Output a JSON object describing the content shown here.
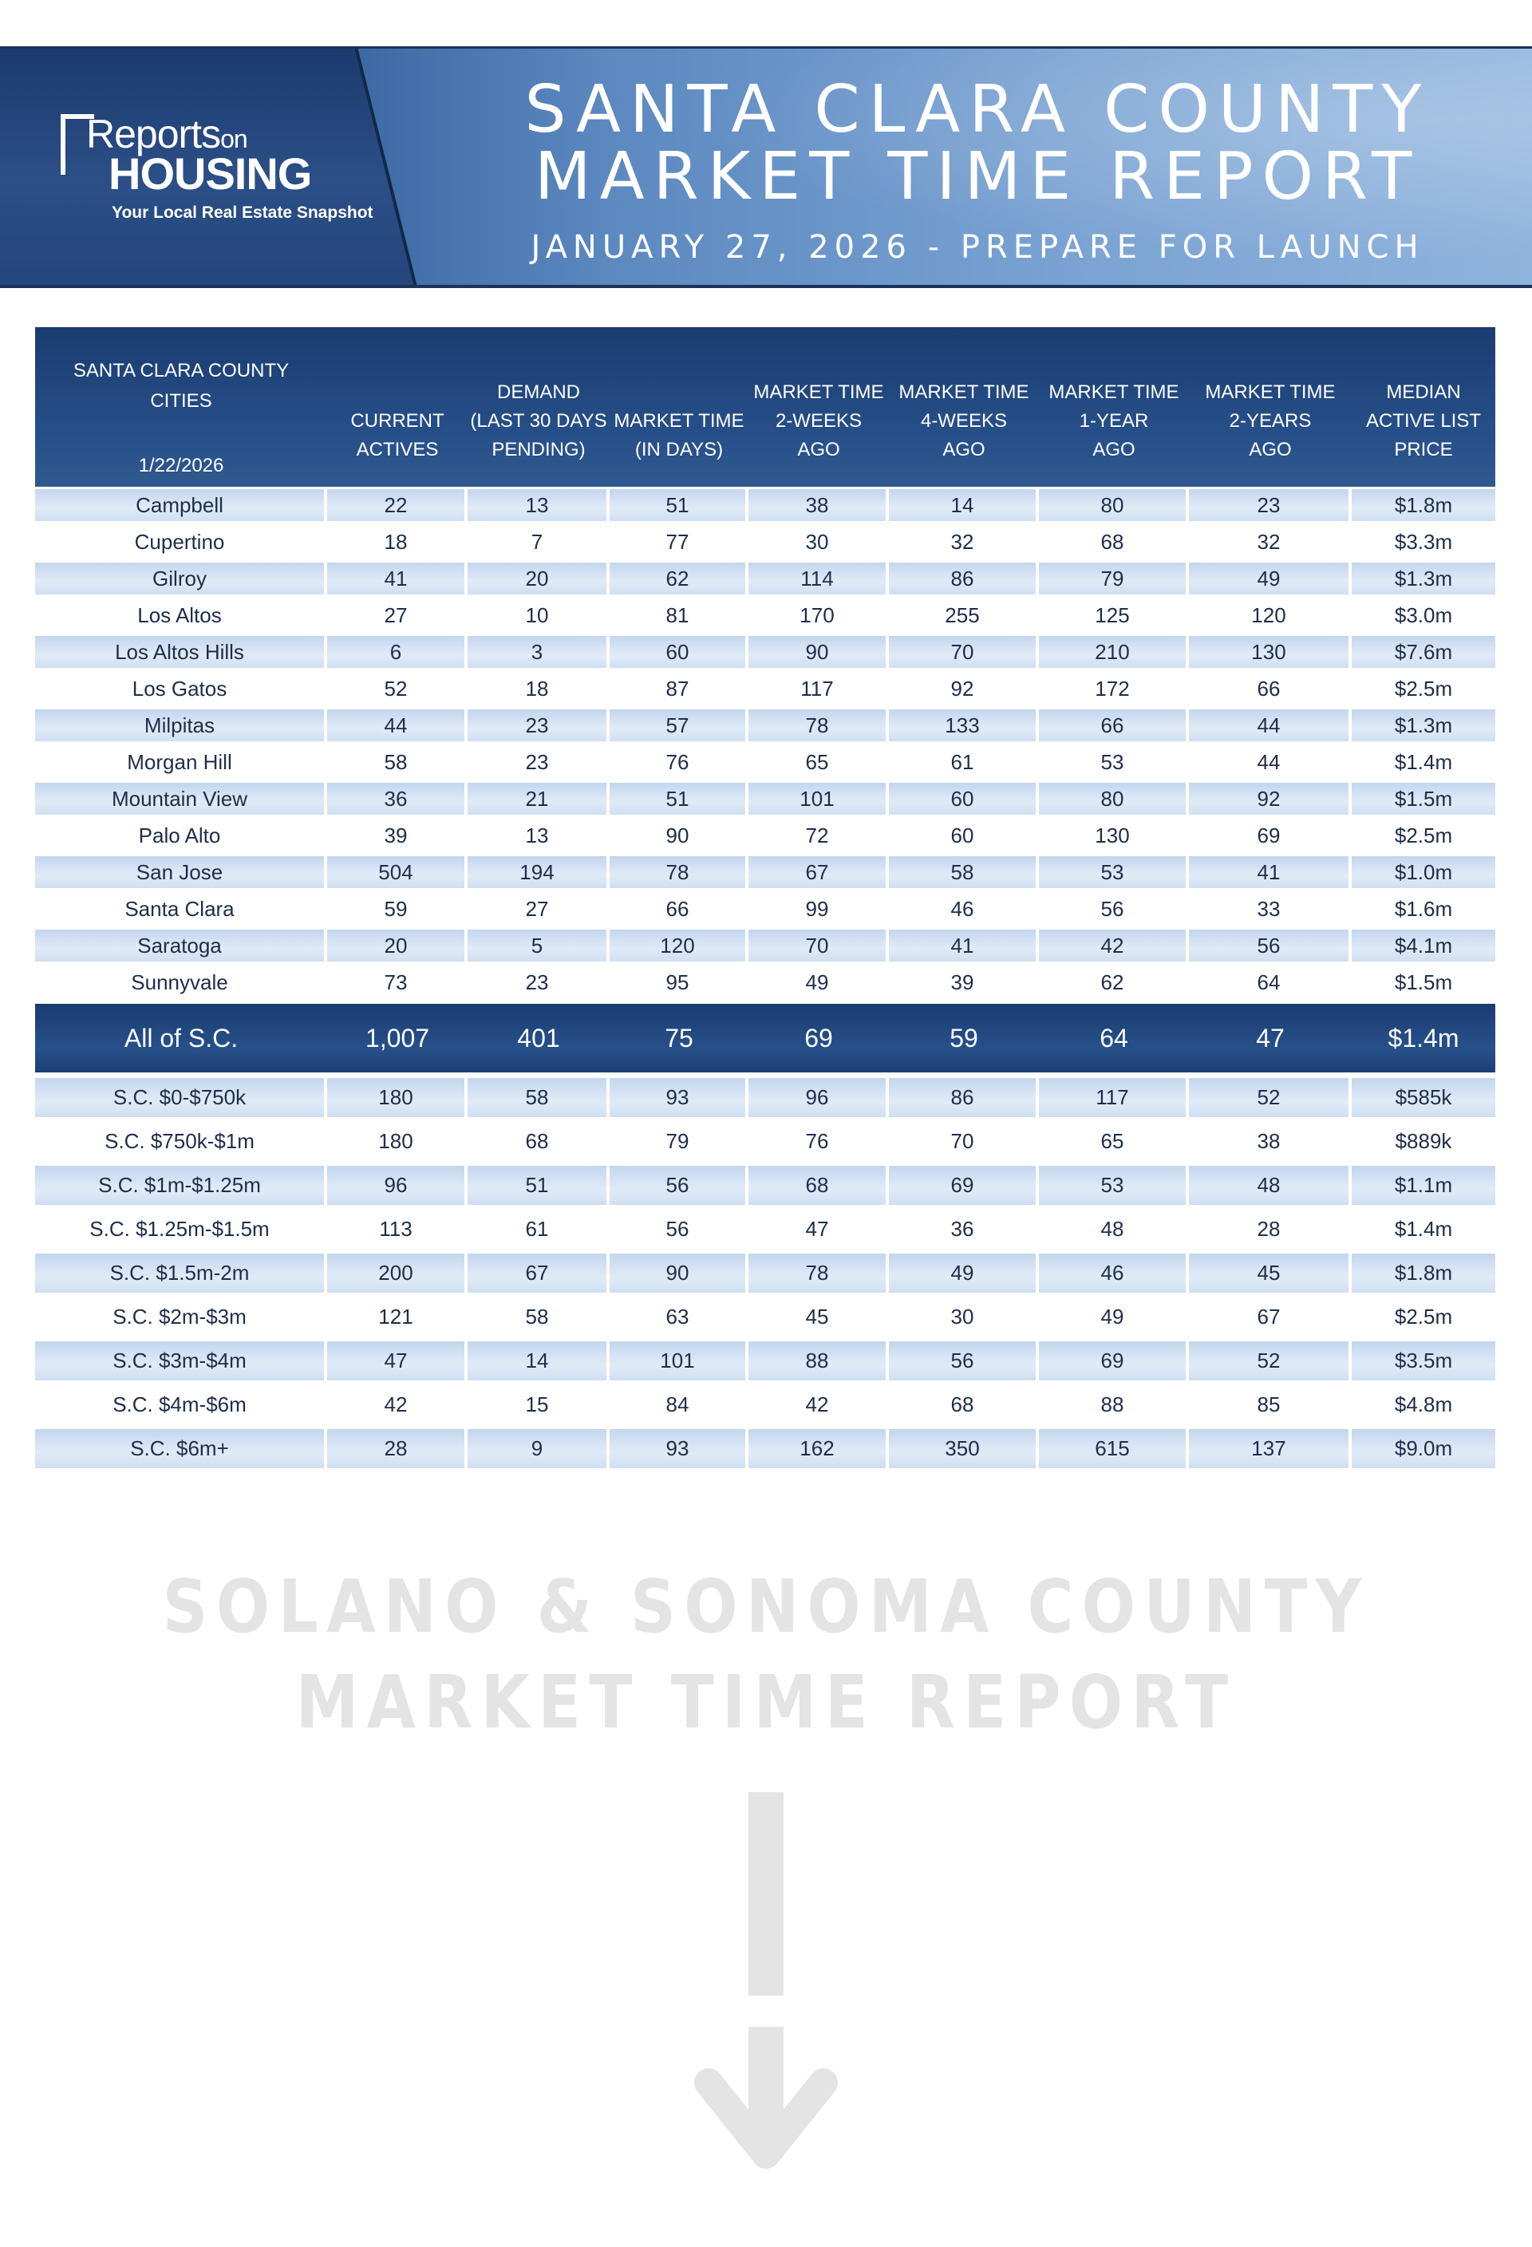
{
  "header": {
    "logo_word1": "Reports",
    "logo_on": "on",
    "logo_word2": "HOUSING",
    "logo_tagline": "Your Local Real Estate Snapshot",
    "title_line1": "SANTA CLARA COUNTY",
    "title_line2": "MARKET TIME REPORT",
    "subtitle": "JANUARY 27, 2026 - PREPARE FOR LAUNCH"
  },
  "table": {
    "headers": {
      "city_line1": "SANTA CLARA COUNTY",
      "city_line2": "CITIES",
      "date": "1/22/2026",
      "actives_1": "CURRENT",
      "actives_2": "ACTIVES",
      "demand_1": "DEMAND",
      "demand_2": "(LAST 30 DAYS",
      "demand_3": "PENDING)",
      "mt_1": "MARKET TIME",
      "mt_2": "(IN DAYS)",
      "mt2w_1": "MARKET TIME",
      "mt2w_2": "2-WEEKS",
      "mt2w_3": "AGO",
      "mt4w_1": "MARKET TIME",
      "mt4w_2": "4-WEEKS",
      "mt4w_3": "AGO",
      "mt1y_1": "MARKET TIME",
      "mt1y_2": "1-YEAR",
      "mt1y_3": "AGO",
      "mt2y_1": "MARKET TIME",
      "mt2y_2": "2-YEARS",
      "mt2y_3": "AGO",
      "price_1": "MEDIAN",
      "price_2": "ACTIVE LIST",
      "price_3": "PRICE"
    },
    "cities": [
      [
        "Campbell",
        "22",
        "13",
        "51",
        "38",
        "14",
        "80",
        "23",
        "$1.8m"
      ],
      [
        "Cupertino",
        "18",
        "7",
        "77",
        "30",
        "32",
        "68",
        "32",
        "$3.3m"
      ],
      [
        "Gilroy",
        "41",
        "20",
        "62",
        "114",
        "86",
        "79",
        "49",
        "$1.3m"
      ],
      [
        "Los Altos",
        "27",
        "10",
        "81",
        "170",
        "255",
        "125",
        "120",
        "$3.0m"
      ],
      [
        "Los Altos Hills",
        "6",
        "3",
        "60",
        "90",
        "70",
        "210",
        "130",
        "$7.6m"
      ],
      [
        "Los Gatos",
        "52",
        "18",
        "87",
        "117",
        "92",
        "172",
        "66",
        "$2.5m"
      ],
      [
        "Milpitas",
        "44",
        "23",
        "57",
        "78",
        "133",
        "66",
        "44",
        "$1.3m"
      ],
      [
        "Morgan Hill",
        "58",
        "23",
        "76",
        "65",
        "61",
        "53",
        "44",
        "$1.4m"
      ],
      [
        "Mountain View",
        "36",
        "21",
        "51",
        "101",
        "60",
        "80",
        "92",
        "$1.5m"
      ],
      [
        "Palo Alto",
        "39",
        "13",
        "90",
        "72",
        "60",
        "130",
        "69",
        "$2.5m"
      ],
      [
        "San Jose",
        "504",
        "194",
        "78",
        "67",
        "58",
        "53",
        "41",
        "$1.0m"
      ],
      [
        "Santa Clara",
        "59",
        "27",
        "66",
        "99",
        "46",
        "56",
        "33",
        "$1.6m"
      ],
      [
        "Saratoga",
        "20",
        "5",
        "120",
        "70",
        "41",
        "42",
        "56",
        "$4.1m"
      ],
      [
        "Sunnyvale",
        "73",
        "23",
        "95",
        "49",
        "39",
        "62",
        "64",
        "$1.5m"
      ]
    ],
    "total": [
      "All of S.C.",
      "1,007",
      "401",
      "75",
      "69",
      "59",
      "64",
      "47",
      "$1.4m"
    ],
    "price_ranges": [
      [
        "S.C. $0-$750k",
        "180",
        "58",
        "93",
        "96",
        "86",
        "117",
        "52",
        "$585k"
      ],
      [
        "S.C. $750k-$1m",
        "180",
        "68",
        "79",
        "76",
        "70",
        "65",
        "38",
        "$889k"
      ],
      [
        "S.C. $1m-$1.25m",
        "96",
        "51",
        "56",
        "68",
        "69",
        "53",
        "48",
        "$1.1m"
      ],
      [
        "S.C. $1.25m-$1.5m",
        "113",
        "61",
        "56",
        "47",
        "36",
        "48",
        "28",
        "$1.4m"
      ],
      [
        "S.C. $1.5m-2m",
        "200",
        "67",
        "90",
        "78",
        "49",
        "46",
        "45",
        "$1.8m"
      ],
      [
        "S.C. $2m-$3m",
        "121",
        "58",
        "63",
        "45",
        "30",
        "49",
        "67",
        "$2.5m"
      ],
      [
        "S.C. $3m-$4m",
        "47",
        "14",
        "101",
        "88",
        "56",
        "69",
        "52",
        "$3.5m"
      ],
      [
        "S.C. $4m-$6m",
        "42",
        "15",
        "84",
        "42",
        "68",
        "88",
        "85",
        "$4.8m"
      ],
      [
        "S.C. $6m+",
        "28",
        "9",
        "93",
        "162",
        "350",
        "615",
        "137",
        "$9.0m"
      ]
    ]
  },
  "teaser": {
    "line1": "SOLANO & SONOMA COUNTY",
    "line2": "MARKET TIME REPORT",
    "arrow_icon": "down-arrow-icon"
  },
  "colors": {
    "banner_dark": "#1f4177",
    "banner_light": "#8fb3dd",
    "table_header": "#1a3c70",
    "row_shade": "#c3d6ee",
    "teaser_gray": "#e4e4e4"
  }
}
